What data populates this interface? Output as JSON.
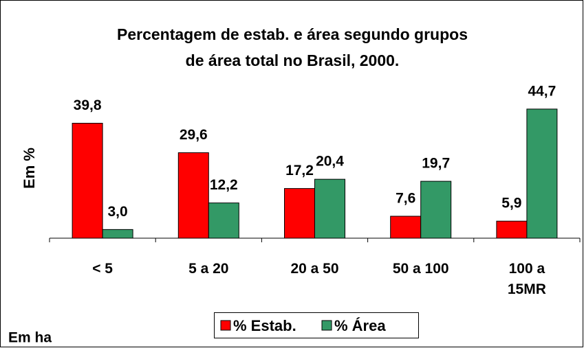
{
  "chart_data": {
    "type": "bar",
    "title": [
      "Percentagem de estab. e área segundo grupos",
      "de área total no Brasil, 2000."
    ],
    "y_label": "Em %",
    "note": "Em ha",
    "categories": [
      "< 5",
      "5 a 20",
      "20 a 50",
      "50 a 100",
      "100 a 15MR"
    ],
    "series": [
      {
        "name": "% Estab.",
        "color": "#ff0000",
        "values": [
          39.8,
          29.6,
          17.2,
          7.6,
          5.9
        ],
        "value_labels": [
          "39,8",
          "29,6",
          "17,2",
          "7,6",
          "5,9"
        ]
      },
      {
        "name": "% Área",
        "color": "#339966",
        "values": [
          3.0,
          12.2,
          20.4,
          19.7,
          44.7
        ],
        "value_labels": [
          "3,0",
          "12,2",
          "20,4",
          "19,7",
          "44,7"
        ]
      }
    ],
    "ylim": [
      0,
      48
    ],
    "legend": "bottom"
  }
}
